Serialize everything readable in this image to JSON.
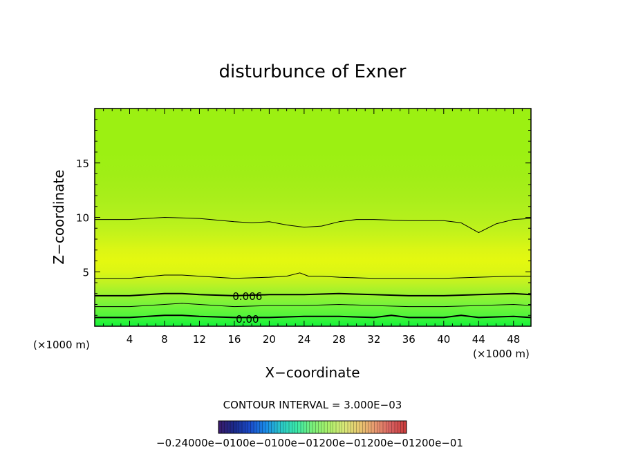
{
  "chart_data": {
    "type": "heatmap",
    "title": "disturbunce of Exner",
    "xlabel": "X−coordinate",
    "ylabel": "Z−coordinate",
    "x_unit_left": "(×1000 m)",
    "x_unit_right": "(×1000 m)",
    "xlim": [
      0,
      50
    ],
    "ylim": [
      0,
      20
    ],
    "x_ticks": [
      4,
      8,
      12,
      16,
      20,
      24,
      28,
      32,
      36,
      40,
      44,
      48
    ],
    "y_ticks": [
      5,
      10,
      15
    ],
    "contour_interval_text": "CONTOUR INTERVAL = 3.000E−03",
    "contour_labels": [
      {
        "text": "0.006",
        "x": 17.5,
        "z": 2.8
      },
      {
        "text": "0.00",
        "x": 17.5,
        "z": 0.7
      }
    ],
    "color_field": {
      "z_levels": [
        0,
        0.5,
        1,
        2,
        3,
        4,
        5,
        6,
        7,
        8,
        9,
        10,
        11,
        12,
        13,
        14,
        15,
        16,
        17,
        18,
        19,
        20
      ],
      "colors": [
        "#14f23a",
        "#2ff43a",
        "#52f53a",
        "#78f33a",
        "#9cf22e",
        "#c0f222",
        "#dcf614",
        "#e4f810",
        "#dcf614",
        "#ccf418",
        "#bef21c",
        "#b4f01c",
        "#aeef1c",
        "#a8ee1a",
        "#a4ee18",
        "#a0ee16",
        "#9ef014",
        "#9cf012",
        "#9cf012",
        "#9cf012",
        "#9cf012",
        "#9cf012"
      ]
    },
    "contours": [
      {
        "level": "9.0e-03",
        "bold": false,
        "x": [
          0,
          4,
          8,
          12,
          16,
          18,
          20,
          22,
          24,
          26,
          28,
          30,
          32,
          36,
          40,
          42,
          44,
          46,
          48,
          50
        ],
        "z": [
          9.8,
          9.8,
          10.0,
          9.9,
          9.6,
          9.5,
          9.6,
          9.3,
          9.1,
          9.2,
          9.6,
          9.8,
          9.8,
          9.7,
          9.7,
          9.5,
          8.6,
          9.4,
          9.8,
          9.9
        ]
      },
      {
        "level": "6.0e-03 (upper)",
        "bold": false,
        "x": [
          0,
          4,
          8,
          10,
          12,
          16,
          20,
          22,
          23.5,
          24.5,
          26,
          28,
          32,
          36,
          40,
          44,
          48,
          50
        ],
        "z": [
          4.4,
          4.4,
          4.7,
          4.7,
          4.6,
          4.4,
          4.5,
          4.6,
          4.9,
          4.6,
          4.6,
          4.5,
          4.4,
          4.4,
          4.4,
          4.5,
          4.6,
          4.6
        ]
      },
      {
        "level": "6.0e-03",
        "bold": true,
        "x": [
          0,
          4,
          8,
          10,
          12,
          16,
          20,
          24,
          28,
          32,
          36,
          40,
          44,
          48,
          50
        ],
        "z": [
          2.8,
          2.8,
          3.0,
          3.0,
          2.9,
          2.8,
          2.9,
          2.9,
          3.0,
          2.9,
          2.8,
          2.8,
          2.9,
          3.0,
          2.9
        ]
      },
      {
        "level": "3.0e-03",
        "bold": false,
        "x": [
          0,
          4,
          8,
          10,
          12,
          16,
          20,
          24,
          28,
          32,
          36,
          40,
          44,
          48,
          50
        ],
        "z": [
          1.8,
          1.8,
          2.0,
          2.1,
          2.0,
          1.8,
          1.9,
          1.9,
          2.0,
          1.9,
          1.8,
          1.8,
          1.9,
          2.0,
          1.9
        ]
      },
      {
        "level": "0.0",
        "bold": true,
        "x": [
          0,
          4,
          8,
          10,
          12,
          16,
          20,
          24,
          28,
          32,
          34,
          36,
          40,
          42,
          44,
          48,
          50
        ],
        "z": [
          0.8,
          0.8,
          1.0,
          1.0,
          0.9,
          0.8,
          0.8,
          0.9,
          0.9,
          0.8,
          1.0,
          0.8,
          0.8,
          1.0,
          0.8,
          0.9,
          0.8
        ]
      }
    ],
    "colorbar": {
      "labels_text": "−0.24000e−0100e−0100e−01200e−01200e−01200e−01",
      "stops": [
        "#3a1a6a",
        "#1a2a8a",
        "#1a4ac8",
        "#1a8ae8",
        "#2ac8c8",
        "#3ae8a8",
        "#7af07a",
        "#aaf06a",
        "#d8e878",
        "#e8c870",
        "#e89870",
        "#d86060",
        "#c83a3a"
      ]
    }
  }
}
